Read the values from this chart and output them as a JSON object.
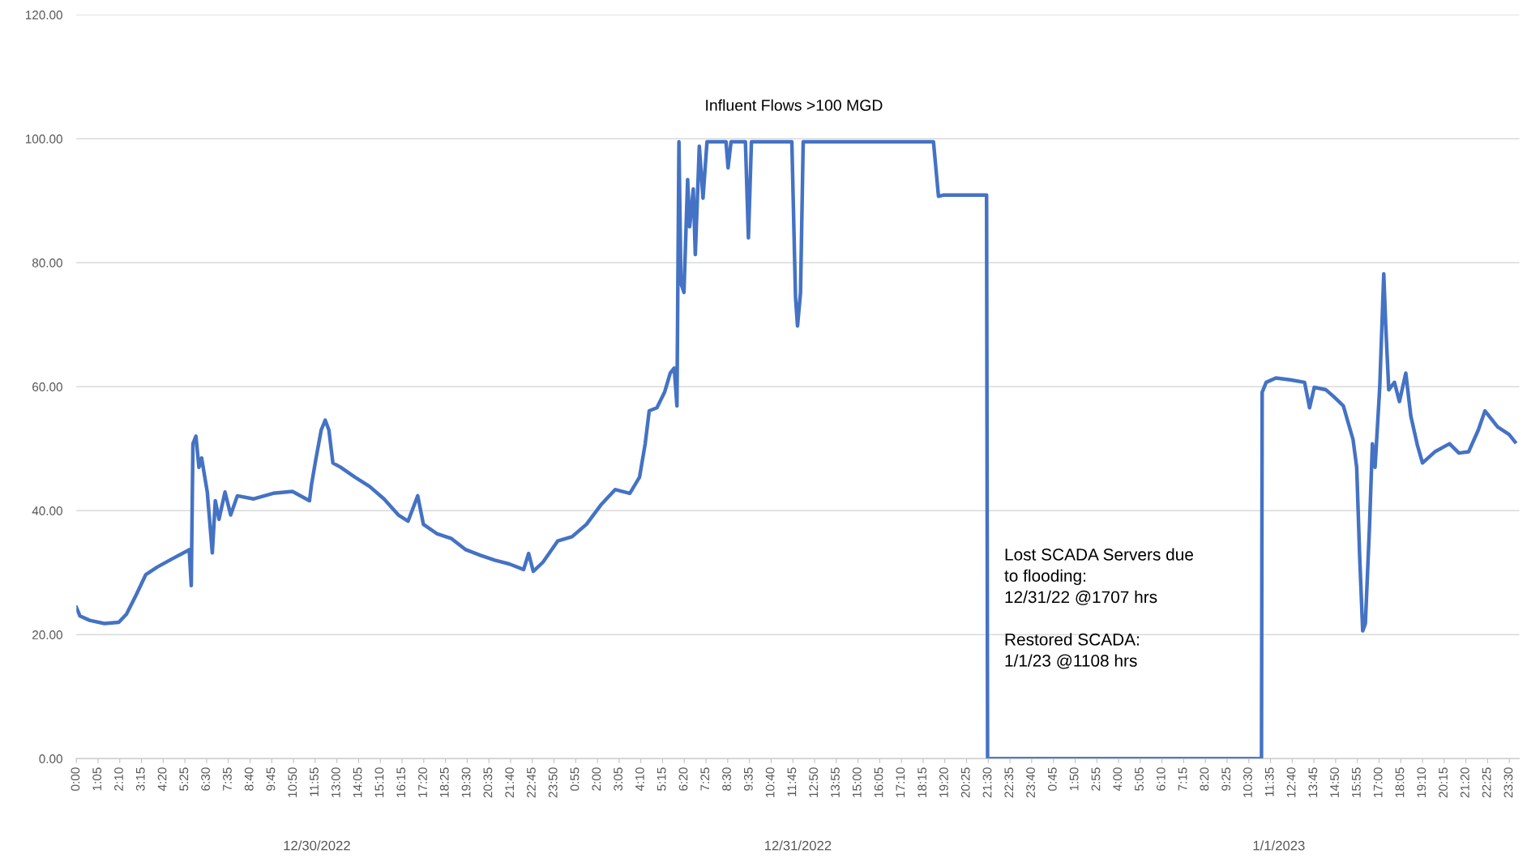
{
  "chart_data": {
    "type": "line",
    "x": [
      "2022-12-30T00:00",
      "2022-12-30T00:11",
      "2022-12-30T00:40",
      "2022-12-30T01:24",
      "2022-12-30T02:07",
      "2022-12-30T02:30",
      "2022-12-30T02:59",
      "2022-12-30T03:28",
      "2022-12-30T04:02",
      "2022-12-30T04:46",
      "2022-12-30T05:38",
      "2022-12-30T05:44",
      "2022-12-30T05:49",
      "2022-12-30T05:58",
      "2022-12-30T06:07",
      "2022-12-30T06:15",
      "2022-12-30T06:32",
      "2022-12-30T06:47",
      "2022-12-30T06:56",
      "2022-12-30T07:07",
      "2022-12-30T07:25",
      "2022-12-30T07:42",
      "2022-12-30T08:02",
      "2022-12-30T08:51",
      "2022-12-30T09:49",
      "2022-12-30T10:47",
      "2022-12-30T11:38",
      "2022-12-30T11:44",
      "2022-12-30T11:56",
      "2022-12-30T12:13",
      "2022-12-30T12:25",
      "2022-12-30T12:36",
      "2022-12-30T12:48",
      "2022-12-30T13:11",
      "2022-12-30T13:54",
      "2022-12-30T14:38",
      "2022-12-30T15:21",
      "2022-12-30T16:04",
      "2022-12-30T16:33",
      "2022-12-30T17:02",
      "2022-12-30T17:19",
      "2022-12-30T17:59",
      "2022-12-30T18:43",
      "2022-12-30T19:26",
      "2022-12-30T20:10",
      "2022-12-30T20:53",
      "2022-12-30T21:36",
      "2022-12-30T22:19",
      "2022-12-30T22:34",
      "2022-12-30T22:48",
      "2022-12-30T23:17",
      "2022-12-31T00:01",
      "2022-12-31T00:44",
      "2022-12-31T01:27",
      "2022-12-31T02:10",
      "2022-12-31T02:53",
      "2022-12-31T03:37",
      "2022-12-31T04:06",
      "2022-12-31T04:23",
      "2022-12-31T04:35",
      "2022-12-31T04:58",
      "2022-12-31T05:21",
      "2022-12-31T05:38",
      "2022-12-31T05:50",
      "2022-12-31T05:58",
      "2022-12-31T06:04",
      "2022-12-31T06:10",
      "2022-12-31T06:19",
      "2022-12-31T06:30",
      "2022-12-31T06:36",
      "2022-12-31T06:47",
      "2022-12-31T06:53",
      "2022-12-31T07:05",
      "2022-12-31T07:16",
      "2022-12-31T07:28",
      "2022-12-31T07:51",
      "2022-12-31T08:25",
      "2022-12-31T08:31",
      "2022-12-31T08:40",
      "2022-12-31T09:23",
      "2022-12-31T09:32",
      "2022-12-31T09:41",
      "2022-12-31T11:42",
      "2022-12-31T11:53",
      "2022-12-31T11:59",
      "2022-12-31T12:08",
      "2022-12-31T12:16",
      "2022-12-31T18:46",
      "2022-12-31T19:01",
      "2022-12-31T19:15",
      "2022-12-31T21:25",
      "2022-12-31T21:28",
      "2023-01-01T11:08",
      "2023-01-01T11:10",
      "2023-01-01T11:22",
      "2023-01-01T11:51",
      "2023-01-01T12:34",
      "2023-01-01T13:17",
      "2023-01-01T13:32",
      "2023-01-01T13:46",
      "2023-01-01T14:21",
      "2023-01-01T14:44",
      "2023-01-01T15:13",
      "2023-01-01T15:42",
      "2023-01-01T15:53",
      "2023-01-01T16:02",
      "2023-01-01T16:11",
      "2023-01-01T16:19",
      "2023-01-01T16:31",
      "2023-01-01T16:40",
      "2023-01-01T16:48",
      "2023-01-01T17:02",
      "2023-01-01T17:14",
      "2023-01-01T17:20",
      "2023-01-01T17:29",
      "2023-01-01T17:46",
      "2023-01-01T18:01",
      "2023-01-01T18:20",
      "2023-01-01T18:35",
      "2023-01-01T18:55",
      "2023-01-01T19:10",
      "2023-01-01T19:47",
      "2023-01-01T20:31",
      "2023-01-01T20:59",
      "2023-01-01T21:28",
      "2023-01-01T21:57",
      "2023-01-01T22:17",
      "2023-01-01T22:55",
      "2023-01-01T23:29",
      "2023-01-01T23:47"
    ],
    "series": [
      {
        "color": "#4472c4",
        "values": [
          24.4,
          23,
          22.3,
          21.8,
          22,
          23.3,
          26.4,
          29.7,
          30.9,
          32.2,
          33.7,
          27.9,
          50.8,
          52,
          47,
          48.5,
          43,
          33.2,
          41.6,
          38.6,
          43,
          39.3,
          42.4,
          41.9,
          42.8,
          43.1,
          41.6,
          44.2,
          48,
          53,
          54.6,
          53,
          47.7,
          47,
          45.4,
          43.9,
          41.9,
          39.3,
          38.3,
          42.4,
          37.8,
          36.3,
          35.5,
          33.7,
          32.8,
          32,
          31.4,
          30.5,
          33.1,
          30.2,
          31.7,
          35.1,
          35.8,
          37.8,
          40.9,
          43.4,
          42.8,
          45.4,
          50.8,
          56.1,
          56.6,
          59.1,
          62.2,
          63,
          56.9,
          99.5,
          76.7,
          75.2,
          93.4,
          85.8,
          91.9,
          81.3,
          98.8,
          90.4,
          99.5,
          99.5,
          99.5,
          95.3,
          99.5,
          99.5,
          84,
          99.5,
          99.5,
          74.4,
          69.8,
          75.2,
          99.5,
          99.5,
          90.7,
          90.9,
          90.9,
          0,
          0,
          59.1,
          60.7,
          61.4,
          61.1,
          60.7,
          56.6,
          59.9,
          59.5,
          58.4,
          56.9,
          51.5,
          47,
          32.5,
          20.6,
          21.8,
          37,
          50.8,
          47,
          59.9,
          78.2,
          69.8,
          59.5,
          60.7,
          57.6,
          62.2,
          55.3,
          50.5,
          47.7,
          49.5,
          50.8,
          49.3,
          49.5,
          53,
          56.1,
          53.5,
          52.3,
          51.1
        ]
      }
    ],
    "ylim": [
      0,
      120
    ],
    "yticks": [
      {
        "value": 0,
        "label": "0.00"
      },
      {
        "value": 20,
        "label": "20.00"
      },
      {
        "value": 40,
        "label": "40.00"
      },
      {
        "value": 60,
        "label": "60.00"
      },
      {
        "value": 80,
        "label": "80.00"
      },
      {
        "value": 100,
        "label": "100.00"
      },
      {
        "value": 120,
        "label": "120.00"
      }
    ],
    "xlim": [
      "2022-12-30T00:00",
      "2023-01-02T00:00"
    ],
    "xticks": [
      {
        "value": "2022-12-30T00:00",
        "label": "0:00"
      },
      {
        "value": "2022-12-30T01:05",
        "label": "1:05"
      },
      {
        "value": "2022-12-30T02:10",
        "label": "2:10"
      },
      {
        "value": "2022-12-30T03:15",
        "label": "3:15"
      },
      {
        "value": "2022-12-30T04:20",
        "label": "4:20"
      },
      {
        "value": "2022-12-30T05:25",
        "label": "5:25"
      },
      {
        "value": "2022-12-30T06:30",
        "label": "6:30"
      },
      {
        "value": "2022-12-30T07:35",
        "label": "7:35"
      },
      {
        "value": "2022-12-30T08:40",
        "label": "8:40"
      },
      {
        "value": "2022-12-30T09:45",
        "label": "9:45"
      },
      {
        "value": "2022-12-30T10:50",
        "label": "10:50"
      },
      {
        "value": "2022-12-30T11:55",
        "label": "11:55"
      },
      {
        "value": "2022-12-30T13:00",
        "label": "13:00"
      },
      {
        "value": "2022-12-30T14:05",
        "label": "14:05"
      },
      {
        "value": "2022-12-30T15:10",
        "label": "15:10"
      },
      {
        "value": "2022-12-30T16:15",
        "label": "16:15"
      },
      {
        "value": "2022-12-30T17:20",
        "label": "17:20"
      },
      {
        "value": "2022-12-30T18:25",
        "label": "18:25"
      },
      {
        "value": "2022-12-30T19:30",
        "label": "19:30"
      },
      {
        "value": "2022-12-30T20:35",
        "label": "20:35"
      },
      {
        "value": "2022-12-30T21:40",
        "label": "21:40"
      },
      {
        "value": "2022-12-30T22:45",
        "label": "22:45"
      },
      {
        "value": "2022-12-30T23:50",
        "label": "23:50"
      },
      {
        "value": "2022-12-31T00:55",
        "label": "0:55"
      },
      {
        "value": "2022-12-31T02:00",
        "label": "2:00"
      },
      {
        "value": "2022-12-31T03:05",
        "label": "3:05"
      },
      {
        "value": "2022-12-31T04:10",
        "label": "4:10"
      },
      {
        "value": "2022-12-31T05:15",
        "label": "5:15"
      },
      {
        "value": "2022-12-31T06:20",
        "label": "6:20"
      },
      {
        "value": "2022-12-31T07:25",
        "label": "7:25"
      },
      {
        "value": "2022-12-31T08:30",
        "label": "8:30"
      },
      {
        "value": "2022-12-31T09:35",
        "label": "9:35"
      },
      {
        "value": "2022-12-31T10:40",
        "label": "10:40"
      },
      {
        "value": "2022-12-31T11:45",
        "label": "11:45"
      },
      {
        "value": "2022-12-31T12:50",
        "label": "12:50"
      },
      {
        "value": "2022-12-31T13:55",
        "label": "13:55"
      },
      {
        "value": "2022-12-31T15:00",
        "label": "15:00"
      },
      {
        "value": "2022-12-31T16:05",
        "label": "16:05"
      },
      {
        "value": "2022-12-31T17:10",
        "label": "17:10"
      },
      {
        "value": "2022-12-31T18:15",
        "label": "18:15"
      },
      {
        "value": "2022-12-31T19:20",
        "label": "19:20"
      },
      {
        "value": "2022-12-31T20:25",
        "label": "20:25"
      },
      {
        "value": "2022-12-31T21:30",
        "label": "21:30"
      },
      {
        "value": "2022-12-31T22:35",
        "label": "22:35"
      },
      {
        "value": "2022-12-31T23:40",
        "label": "23:40"
      },
      {
        "value": "2023-01-01T00:45",
        "label": "0:45"
      },
      {
        "value": "2023-01-01T01:50",
        "label": "1:50"
      },
      {
        "value": "2023-01-01T02:55",
        "label": "2:55"
      },
      {
        "value": "2023-01-01T04:00",
        "label": "4:00"
      },
      {
        "value": "2023-01-01T05:05",
        "label": "5:05"
      },
      {
        "value": "2023-01-01T06:10",
        "label": "6:10"
      },
      {
        "value": "2023-01-01T07:15",
        "label": "7:15"
      },
      {
        "value": "2023-01-01T08:20",
        "label": "8:20"
      },
      {
        "value": "2023-01-01T09:25",
        "label": "9:25"
      },
      {
        "value": "2023-01-01T10:30",
        "label": "10:30"
      },
      {
        "value": "2023-01-01T11:35",
        "label": "11:35"
      },
      {
        "value": "2023-01-01T12:40",
        "label": "12:40"
      },
      {
        "value": "2023-01-01T13:45",
        "label": "13:45"
      },
      {
        "value": "2023-01-01T14:50",
        "label": "14:50"
      },
      {
        "value": "2023-01-01T15:55",
        "label": "15:55"
      },
      {
        "value": "2023-01-01T17:00",
        "label": "17:00"
      },
      {
        "value": "2023-01-01T18:05",
        "label": "18:05"
      },
      {
        "value": "2023-01-01T19:10",
        "label": "19:10"
      },
      {
        "value": "2023-01-01T20:15",
        "label": "20:15"
      },
      {
        "value": "2023-01-01T21:20",
        "label": "21:20"
      },
      {
        "value": "2023-01-01T22:25",
        "label": "22:25"
      },
      {
        "value": "2023-01-01T23:30",
        "label": "23:30"
      }
    ],
    "grid": "y",
    "marker": "none",
    "line_style": "solid",
    "annotations": [
      {
        "text": "Influent Flows >100 MGD",
        "x": "2022-12-31T11:48",
        "y": 100
      },
      "Lost SCADA Servers due\nto flooding:\n12/31/22 @1707 hrs\n\nRestored SCADA:\n1/1/23 @1108 hrs",
      "12/30/2022",
      "12/31/2022",
      "1/1/2023"
    ]
  }
}
